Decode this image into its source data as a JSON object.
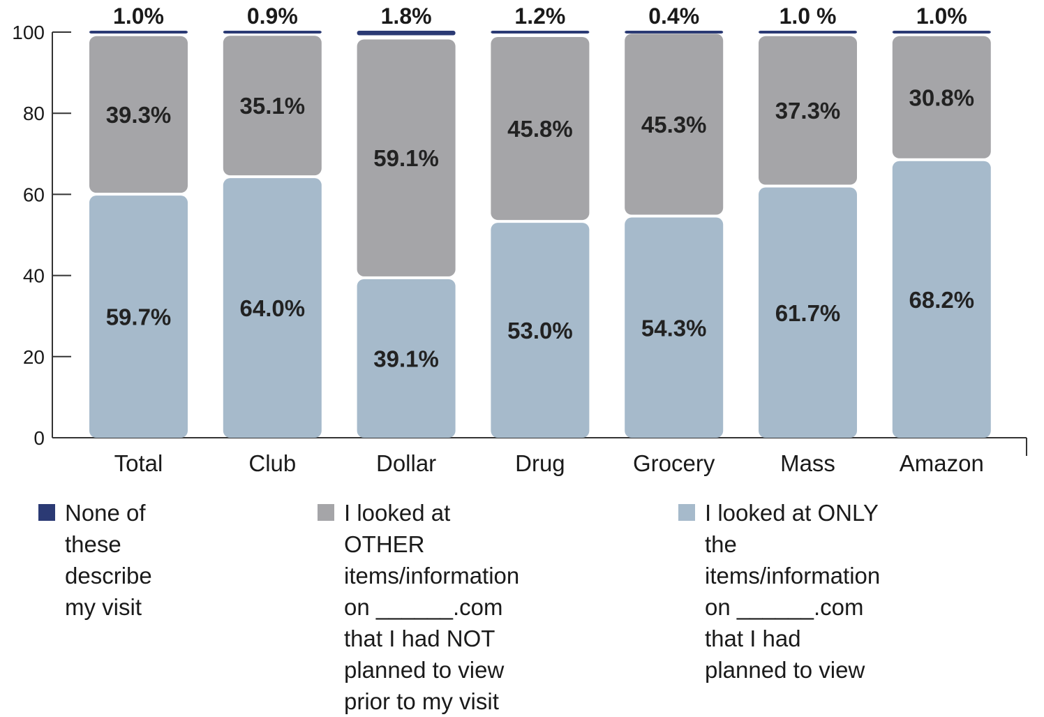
{
  "chart_data": {
    "type": "bar",
    "stacked": true,
    "categories": [
      "Total",
      "Club",
      "Dollar",
      "Drug",
      "Grocery",
      "Mass",
      "Amazon"
    ],
    "series": [
      {
        "name": "I looked at ONLY the items/information on ______.com that I had planned to view",
        "color": "#a6bacb",
        "values": [
          59.7,
          64.0,
          39.1,
          53.0,
          54.3,
          61.7,
          68.2
        ],
        "labels": [
          "59.7%",
          "64.0%",
          "39.1%",
          "53.0%",
          "54.3%",
          "61.7%",
          "68.2%"
        ]
      },
      {
        "name": "I looked at OTHER items/information on ______.com that I had NOT planned to view prior to my visit",
        "color": "#a5a5a8",
        "values": [
          39.3,
          35.1,
          59.1,
          45.8,
          45.3,
          37.3,
          30.8
        ],
        "labels": [
          "39.3%",
          "35.1%",
          "59.1%",
          "45.8%",
          "45.3%",
          "37.3%",
          "30.8%"
        ]
      },
      {
        "name": "None of these describe my visit",
        "color": "#2b3a74",
        "values": [
          1.0,
          0.9,
          1.8,
          1.2,
          0.4,
          1.0,
          1.0
        ],
        "labels": [
          "1.0%",
          "0.9%",
          "1.8%",
          "1.2%",
          "0.4%",
          "1.0 %",
          "1.0%"
        ]
      }
    ],
    "y_ticks": [
      0,
      20,
      40,
      60,
      80,
      100
    ],
    "ylim": [
      0,
      100
    ],
    "grid": false,
    "legend_position": "bottom"
  },
  "legend": [
    {
      "label": "None of these describe\nmy visit",
      "color": "#2b3a74"
    },
    {
      "label": "I looked at OTHER\nitems/information on ______.com\nthat I had NOT planned to view\nprior to my visit",
      "color": "#a5a5a8"
    },
    {
      "label": "I looked at ONLY the\nitems/information on ______.com\nthat I had planned to view",
      "color": "#a6bacb"
    }
  ]
}
